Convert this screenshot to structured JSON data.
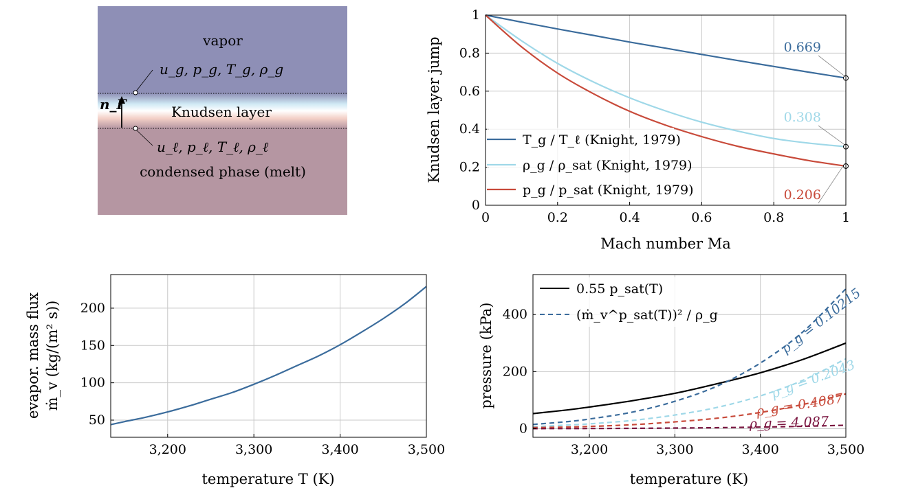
{
  "colors": {
    "blue": "#3b6c9c",
    "lightblue": "#9fd8e8",
    "red": "#c84a3a",
    "darkred": "#7a1540",
    "black": "#000000",
    "vapor": "#8e8fb6",
    "melt": "#b596a2"
  },
  "diagram": {
    "vapor_label": "vapor",
    "vapor_vars": "u_g, p_g, T_g, ρ_g",
    "normal_label": "n_Γ",
    "layer_label": "Knudsen layer",
    "melt_vars": "u_ℓ, p_ℓ, T_ℓ, ρ_ℓ",
    "melt_label": "condensed phase (melt)"
  },
  "chart_data": [
    {
      "type": "line",
      "id": "knudsen",
      "xlabel": "Mach number Ma",
      "ylabel": "Knudsen layer jump",
      "xlim": [
        0,
        1
      ],
      "ylim": [
        0,
        1
      ],
      "xticks": [
        "0",
        "0.2",
        "0.4",
        "0.6",
        "0.8",
        "1"
      ],
      "yticks": [
        "0",
        "0.2",
        "0.4",
        "0.6",
        "0.8",
        "1"
      ],
      "grid": true,
      "legend_position": "bottom-left",
      "x": [
        0,
        0.1,
        0.2,
        0.3,
        0.4,
        0.5,
        0.6,
        0.7,
        0.8,
        0.9,
        1.0
      ],
      "series": [
        {
          "name": "T_g / T_ℓ (Knight, 1979)",
          "color": "blue",
          "values": [
            1.0,
            0.963,
            0.927,
            0.893,
            0.858,
            0.826,
            0.793,
            0.761,
            0.73,
            0.699,
            0.669
          ],
          "end_label": "0.669"
        },
        {
          "name": "ρ_g / ρ_sat (Knight, 1979)",
          "color": "lightblue",
          "values": [
            1.0,
            0.865,
            0.746,
            0.648,
            0.565,
            0.496,
            0.437,
            0.39,
            0.351,
            0.326,
            0.308
          ],
          "end_label": "0.308"
        },
        {
          "name": "p_g / p_sat (Knight, 1979)",
          "color": "red",
          "values": [
            1.0,
            0.833,
            0.695,
            0.586,
            0.494,
            0.421,
            0.361,
            0.31,
            0.27,
            0.234,
            0.206
          ],
          "end_label": "0.206"
        }
      ]
    },
    {
      "type": "line",
      "id": "massflux",
      "xlabel": "temperature T (K)",
      "ylabel_line1": "evapor. mass flux",
      "ylabel_line2": "ṁ_v (kg/(m² s))",
      "xlim": [
        3134,
        3500
      ],
      "ylim": [
        27,
        245
      ],
      "xticks": [
        "3,200",
        "3,300",
        "3,400",
        "3,500"
      ],
      "yticks": [
        "50",
        "100",
        "150",
        "200"
      ],
      "grid": true,
      "x": [
        3134,
        3150,
        3175,
        3200,
        3225,
        3250,
        3275,
        3300,
        3325,
        3350,
        3375,
        3400,
        3425,
        3450,
        3475,
        3500
      ],
      "series": [
        {
          "color": "blue",
          "values": [
            44,
            48,
            54,
            61,
            69,
            78,
            87,
            98,
            110,
            123,
            136,
            151,
            168,
            186,
            206,
            229
          ]
        }
      ]
    },
    {
      "type": "line",
      "id": "pressure",
      "xlabel": "temperature (K)",
      "ylabel": "pressure (kPa)",
      "xlim": [
        3134,
        3500
      ],
      "ylim": [
        -30,
        540
      ],
      "xticks": [
        "3,200",
        "3,300",
        "3,400",
        "3,500"
      ],
      "yticks": [
        "0",
        "200",
        "400"
      ],
      "grid": true,
      "legend_position": "top-left",
      "legend": [
        "0.55 p_sat(T)",
        "(ṁ_v^p_sat(T))² / ρ_g"
      ],
      "x": [
        3134,
        3175,
        3200,
        3250,
        3300,
        3350,
        3400,
        3450,
        3500
      ],
      "series": [
        {
          "name": "0.55 p_sat(T)",
          "color": "black",
          "style": "solid",
          "values": [
            53,
            66,
            76,
            98,
            124,
            158,
            196,
            243,
            300
          ]
        },
        {
          "name": "ρ_g = 0.10215",
          "color": "blue",
          "style": "dashed",
          "values": [
            15,
            25,
            34,
            58,
            96,
            150,
            230,
            340,
            490
          ]
        },
        {
          "name": "ρ_g = 0.2043",
          "color": "lightblue",
          "style": "dashed",
          "values": [
            7,
            13,
            17,
            29,
            48,
            75,
            115,
            170,
            245
          ]
        },
        {
          "name": "ρ_g = 0.4087",
          "color": "red",
          "style": "dashed",
          "values": [
            4,
            6,
            8,
            14,
            24,
            37,
            57,
            85,
            122
          ]
        },
        {
          "name": "ρ_g = 4.087",
          "color": "darkred",
          "style": "dashed",
          "values": [
            0.4,
            0.6,
            0.8,
            1.4,
            2.4,
            3.7,
            5.7,
            8.5,
            12.2
          ]
        }
      ],
      "annotations": [
        "ρ_g = 0.10215",
        "ρ_g = 0.2043",
        "ρ_g = 0.4087",
        "ρ_g = 4.087"
      ]
    }
  ]
}
